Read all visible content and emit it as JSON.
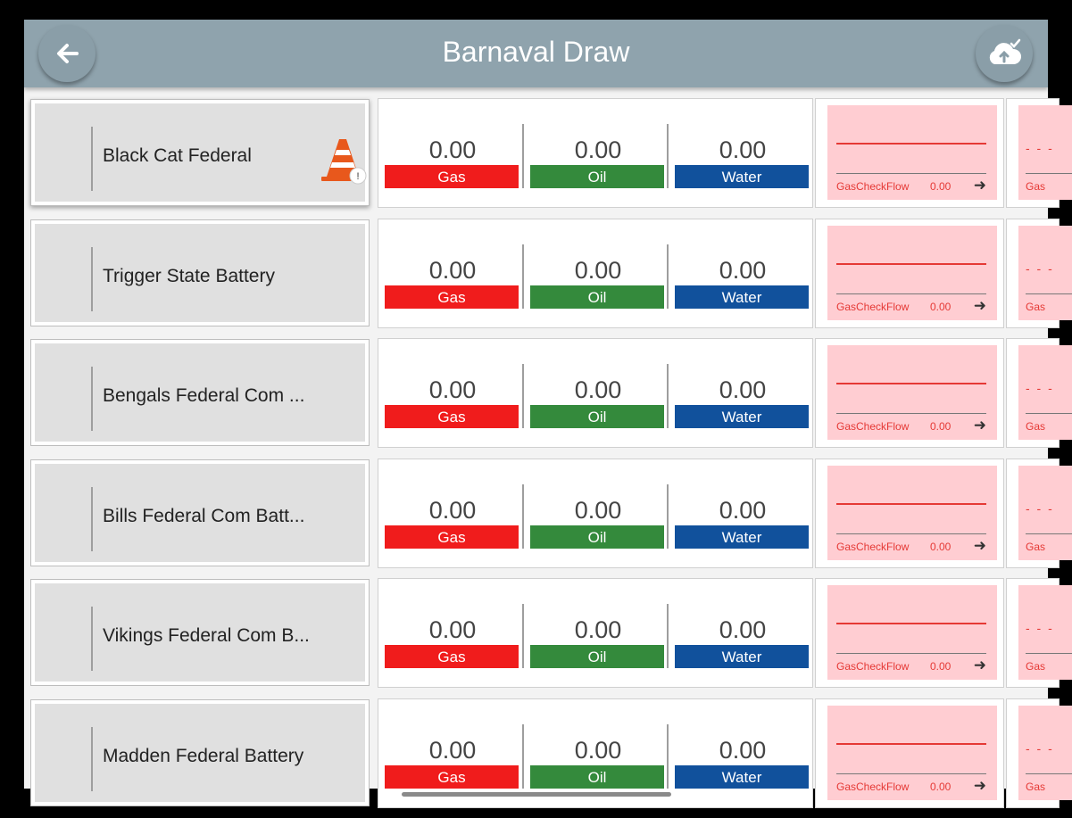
{
  "header": {
    "title": "Barnaval Draw",
    "back_icon": "arrow-left-icon",
    "sync_icon": "cloud-upload-check-icon"
  },
  "colors": {
    "header": "#8fa3ad",
    "gas": "#f01c1c",
    "oil": "#348a3c",
    "water": "#11519c",
    "gas_panel": "#ffcdd2",
    "alert": "#e8581c"
  },
  "rows": [
    {
      "name": "Black Cat Federal",
      "selected": true,
      "alert_icon": "traffic-cone-icon",
      "alert_badge": "!",
      "gas": "0.00",
      "oil": "0.00",
      "water": "0.00",
      "gas_label": "Gas",
      "oil_label": "Oil",
      "water_label": "Water",
      "check_label": "GasCheckFlow",
      "check_value": "0.00",
      "next_label": "Gas"
    },
    {
      "name": "Trigger State Battery",
      "gas": "0.00",
      "oil": "0.00",
      "water": "0.00",
      "gas_label": "Gas",
      "oil_label": "Oil",
      "water_label": "Water",
      "check_label": "GasCheckFlow",
      "check_value": "0.00",
      "next_label": "Gas"
    },
    {
      "name": "Bengals Federal Com ...",
      "gas": "0.00",
      "oil": "0.00",
      "water": "0.00",
      "gas_label": "Gas",
      "oil_label": "Oil",
      "water_label": "Water",
      "check_label": "GasCheckFlow",
      "check_value": "0.00",
      "next_label": "Gas"
    },
    {
      "name": "Bills Federal Com Batt...",
      "gas": "0.00",
      "oil": "0.00",
      "water": "0.00",
      "gas_label": "Gas",
      "oil_label": "Oil",
      "water_label": "Water",
      "check_label": "GasCheckFlow",
      "check_value": "0.00",
      "next_label": "Gas"
    },
    {
      "name": "Vikings Federal Com B...",
      "gas": "0.00",
      "oil": "0.00",
      "water": "0.00",
      "gas_label": "Gas",
      "oil_label": "Oil",
      "water_label": "Water",
      "check_label": "GasCheckFlow",
      "check_value": "0.00",
      "next_label": "Gas"
    },
    {
      "name": "Madden Federal Battery",
      "gas": "0.00",
      "oil": "0.00",
      "water": "0.00",
      "gas_label": "Gas",
      "oil_label": "Oil",
      "water_label": "Water",
      "check_label": "GasCheckFlow",
      "check_value": "0.00",
      "next_label": "Gas"
    }
  ]
}
